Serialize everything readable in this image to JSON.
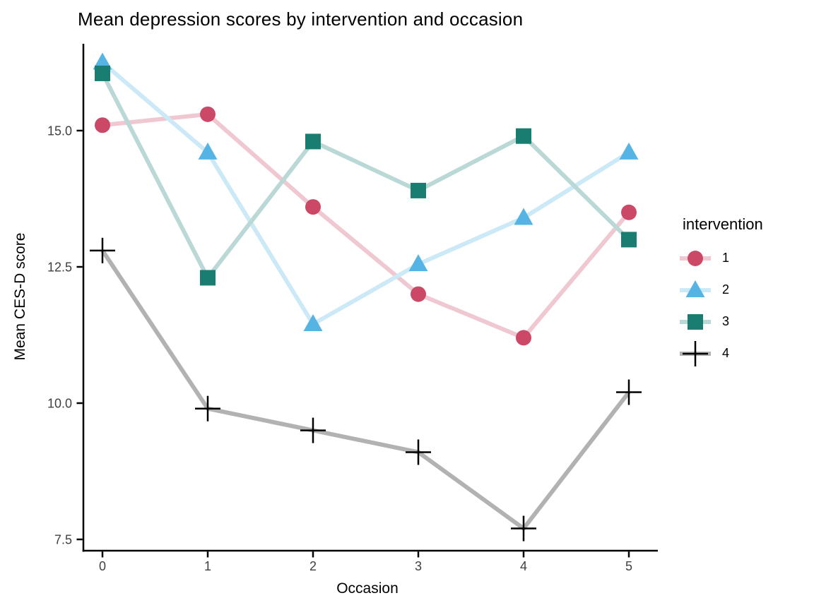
{
  "figure": {
    "title": "Mean depression scores by intervention and occasion",
    "background": "#ffffff"
  },
  "chart_data": {
    "type": "line",
    "title": "Mean depression scores by intervention and occasion",
    "xlabel": "Occasion",
    "ylabel": "Mean CES-D score",
    "x": [
      0,
      1,
      2,
      3,
      4,
      5
    ],
    "xtick_labels": [
      "0",
      "1",
      "2",
      "3",
      "4",
      "5"
    ],
    "yticks": [
      7.5,
      10.0,
      12.5,
      15.0
    ],
    "ytick_labels": [
      "7.5",
      "10.0",
      "12.5",
      "15.0"
    ],
    "ylim": [
      7.3,
      16.6
    ],
    "xlim": [
      -0.25,
      5.25
    ],
    "grid": false,
    "axis_color": "#000000",
    "axis_text_color": "#404040",
    "legend": {
      "title": "intervention",
      "position": "right"
    },
    "series": [
      {
        "name": "1",
        "marker": "circle",
        "color": "#CB4967",
        "line_color": "#EFC8D1",
        "values": [
          15.1,
          15.3,
          13.6,
          12.0,
          11.2,
          13.5
        ]
      },
      {
        "name": "2",
        "marker": "triangle",
        "color": "#55B4E3",
        "line_color": "#CCE9F8",
        "values": [
          16.25,
          14.6,
          11.45,
          12.55,
          13.4,
          14.6
        ]
      },
      {
        "name": "3",
        "marker": "square",
        "color": "#1A7D71",
        "line_color": "#BAD8D5",
        "values": [
          16.05,
          12.3,
          14.8,
          13.9,
          14.9,
          13.0
        ]
      },
      {
        "name": "4",
        "marker": "plus",
        "color": "#000000",
        "line_color": "#B2B2B2",
        "values": [
          12.8,
          9.9,
          9.5,
          9.1,
          7.7,
          10.2
        ]
      }
    ]
  }
}
